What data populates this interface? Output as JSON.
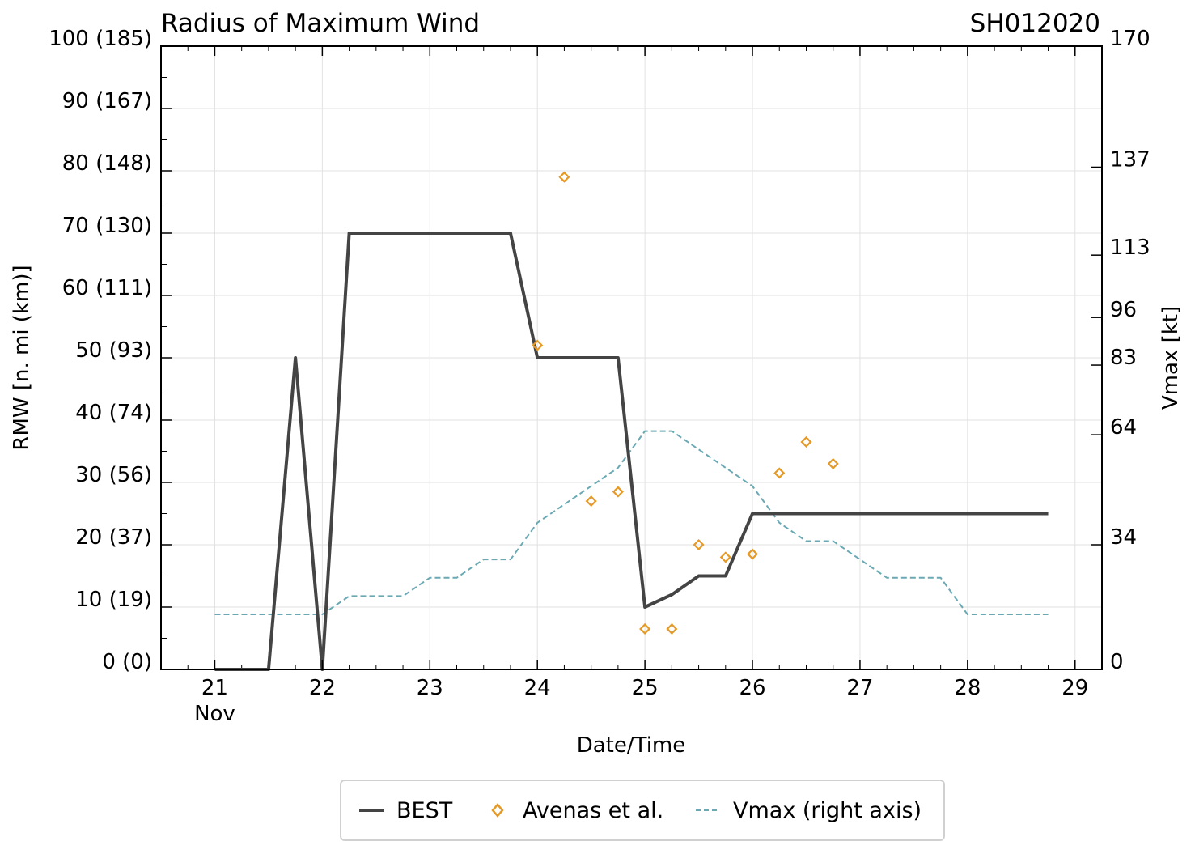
{
  "chart_data": {
    "type": "line",
    "title": "Radius of Maximum Wind",
    "storm_id": "SH012020",
    "xlabel": "Date/Time",
    "ylabel": "RMW [n. mi (km)]",
    "ylabel_right": "Vmax [kt]",
    "xlim": [
      20.5,
      29.25
    ],
    "ylim": [
      0,
      100
    ],
    "ylim_right": [
      0,
      170
    ],
    "x_ticks": [
      {
        "value": 21,
        "label": "21",
        "sublabel": "Nov"
      },
      {
        "value": 22,
        "label": "22"
      },
      {
        "value": 23,
        "label": "23"
      },
      {
        "value": 24,
        "label": "24"
      },
      {
        "value": 25,
        "label": "25"
      },
      {
        "value": 26,
        "label": "26"
      },
      {
        "value": 27,
        "label": "27"
      },
      {
        "value": 28,
        "label": "28"
      },
      {
        "value": 29,
        "label": "29"
      }
    ],
    "y_ticks": [
      {
        "value": 0,
        "label": "0 (0)"
      },
      {
        "value": 10,
        "label": "10 (19)"
      },
      {
        "value": 20,
        "label": "20 (37)"
      },
      {
        "value": 30,
        "label": "30 (56)"
      },
      {
        "value": 40,
        "label": "40 (74)"
      },
      {
        "value": 50,
        "label": "50 (93)"
      },
      {
        "value": 60,
        "label": "60 (111)"
      },
      {
        "value": 70,
        "label": "70 (130)"
      },
      {
        "value": 80,
        "label": "80 (148)"
      },
      {
        "value": 90,
        "label": "90 (167)"
      },
      {
        "value": 100,
        "label": "100 (185)"
      }
    ],
    "y_ticks_right": [
      {
        "value": 0,
        "label": "0"
      },
      {
        "value": 34,
        "label": "34"
      },
      {
        "value": 64,
        "label": "64"
      },
      {
        "value": 83,
        "label": "83"
      },
      {
        "value": 96,
        "label": "96"
      },
      {
        "value": 113,
        "label": "113"
      },
      {
        "value": 137,
        "label": "137"
      },
      {
        "value": 170,
        "label": "170"
      }
    ],
    "grid": true,
    "legend_position": "bottom-center",
    "series": [
      {
        "name": "BEST",
        "kind": "line",
        "color": "#444444",
        "x": [
          21,
          21.25,
          21.5,
          21.75,
          22,
          22.25,
          22.5,
          22.75,
          23,
          23.25,
          23.5,
          23.75,
          24,
          24.25,
          24.5,
          24.75,
          25,
          25.25,
          25.5,
          25.75,
          26,
          26.25,
          26.5,
          26.75,
          27,
          27.25,
          27.5,
          27.75,
          28,
          28.25,
          28.5,
          28.75
        ],
        "values": [
          0,
          0,
          0,
          50,
          0,
          70,
          70,
          70,
          70,
          70,
          70,
          70,
          50,
          50,
          50,
          50,
          10,
          12,
          15,
          15,
          25,
          25,
          25,
          25,
          25,
          25,
          25,
          25,
          25,
          25,
          25,
          25
        ]
      },
      {
        "name": "Avenas et al.",
        "kind": "scatter",
        "color": "#e69a26",
        "x": [
          24,
          24.25,
          24.5,
          24.75,
          25,
          25.25,
          25.5,
          25.75,
          26,
          26.25,
          26.5,
          26.75
        ],
        "values": [
          52,
          79,
          27,
          28.5,
          6.5,
          6.5,
          20,
          18,
          18.5,
          31.5,
          36.5,
          33
        ]
      },
      {
        "name": "Vmax (right axis)",
        "kind": "line",
        "axis": "right",
        "color": "#6aa9b4",
        "x": [
          21,
          21.25,
          21.5,
          21.75,
          22,
          22.25,
          22.5,
          22.75,
          23,
          23.25,
          23.5,
          23.75,
          24,
          24.25,
          24.5,
          24.75,
          25,
          25.25,
          25.5,
          25.75,
          26,
          26.25,
          26.5,
          26.75,
          27,
          27.25,
          27.5,
          27.75,
          28,
          28.25,
          28.5,
          28.75
        ],
        "values": [
          15,
          15,
          15,
          15,
          15,
          20,
          20,
          20,
          25,
          25,
          30,
          30,
          40,
          45,
          50,
          55,
          65,
          65,
          60,
          55,
          50,
          40,
          35,
          35,
          30,
          25,
          25,
          25,
          15,
          15,
          15,
          15
        ]
      }
    ]
  }
}
